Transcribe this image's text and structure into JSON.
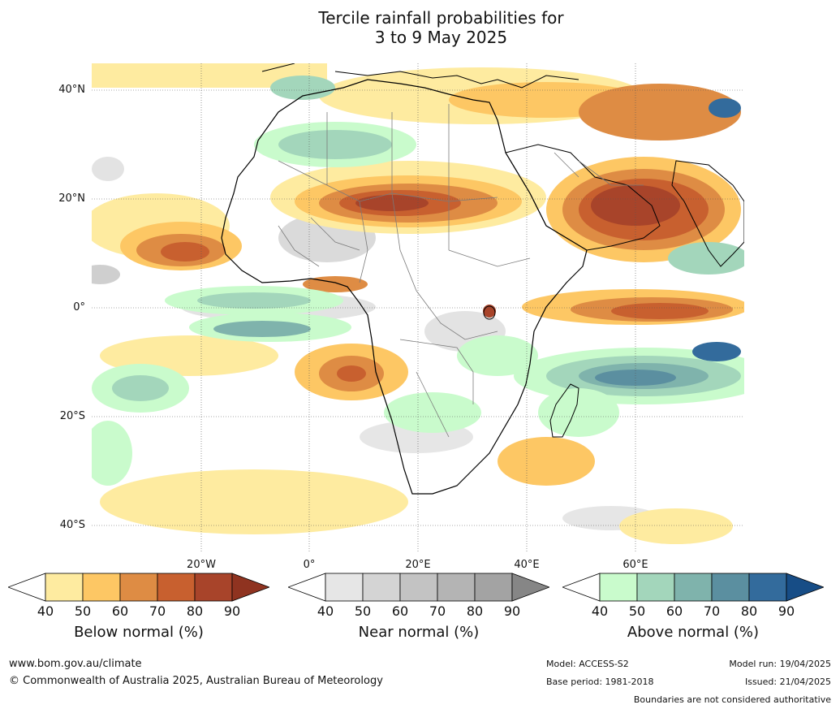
{
  "title": {
    "line1": "Tercile rainfall probabilities for",
    "line2": "3 to 9 May 2025"
  },
  "map": {
    "region": "Africa and surrounding oceans",
    "lat_labels": [
      "40°N",
      "20°N",
      "0°",
      "20°S",
      "40°S"
    ],
    "lon_labels": [
      "20°W",
      "0°",
      "20°E",
      "40°E",
      "60°E"
    ]
  },
  "colorbars": [
    {
      "id": "below",
      "label": "Below normal (%)",
      "ticks": [
        "40",
        "50",
        "60",
        "70",
        "80",
        "90"
      ],
      "colors": [
        "#ffffff",
        "#feeba0",
        "#fdc764",
        "#de8c44",
        "#c8602f",
        "#a8442a",
        "#8f3320"
      ]
    },
    {
      "id": "near",
      "label": "Near normal (%)",
      "ticks": [
        "40",
        "50",
        "60",
        "70",
        "80",
        "90"
      ],
      "colors": [
        "#ffffff",
        "#e6e6e6",
        "#d4d4d4",
        "#c3c3c3",
        "#b4b4b4",
        "#a3a3a3",
        "#868686"
      ]
    },
    {
      "id": "above",
      "label": "Above normal (%)",
      "ticks": [
        "40",
        "50",
        "60",
        "70",
        "80",
        "90"
      ],
      "colors": [
        "#ffffff",
        "#c9fbcc",
        "#a3d6bb",
        "#7fb3ac",
        "#5b8fa0",
        "#336b9c",
        "#174d86"
      ]
    }
  ],
  "footer": {
    "website": "www.bom.gov.au/climate",
    "copyright": "© Commonwealth of Australia 2025, Australian Bureau of Meteorology",
    "model": "Model: ACCESS-S2",
    "base_period": "Base period: 1981-2018",
    "model_run": "Model run: 19/04/2025",
    "issued": "Issued: 21/04/2025",
    "disclaimer": "Boundaries are not considered authoritative"
  }
}
